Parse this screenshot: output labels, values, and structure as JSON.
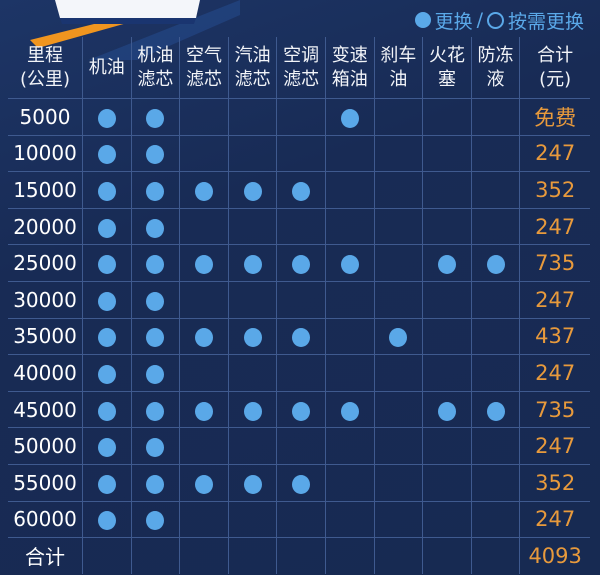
{
  "legend": {
    "replace_label": "更换",
    "separator": "/",
    "on_demand_label": "按需更换",
    "dot_color": "#5aa8e8"
  },
  "colors": {
    "total_text": "#e89a3c",
    "grid": "#3f5a8f"
  },
  "columns": [
    [
      "里程",
      "(公里)"
    ],
    [
      "机油"
    ],
    [
      "机油",
      "滤芯"
    ],
    [
      "空气",
      "滤芯"
    ],
    [
      "汽油",
      "滤芯"
    ],
    [
      "空调",
      "滤芯"
    ],
    [
      "变速",
      "箱油"
    ],
    [
      "刹车",
      "油"
    ],
    [
      "火花",
      "塞"
    ],
    [
      "防冻",
      "液"
    ],
    [
      "合计",
      "(元)"
    ]
  ],
  "rows": [
    {
      "km": "5000",
      "marks": [
        1,
        1,
        0,
        0,
        0,
        1,
        0,
        0,
        0
      ],
      "total": "免费"
    },
    {
      "km": "10000",
      "marks": [
        1,
        1,
        0,
        0,
        0,
        0,
        0,
        0,
        0
      ],
      "total": "247"
    },
    {
      "km": "15000",
      "marks": [
        1,
        1,
        1,
        1,
        1,
        0,
        0,
        0,
        0
      ],
      "total": "352"
    },
    {
      "km": "20000",
      "marks": [
        1,
        1,
        0,
        0,
        0,
        0,
        0,
        0,
        0
      ],
      "total": "247"
    },
    {
      "km": "25000",
      "marks": [
        1,
        1,
        1,
        1,
        1,
        1,
        0,
        1,
        1
      ],
      "total": "735"
    },
    {
      "km": "30000",
      "marks": [
        1,
        1,
        0,
        0,
        0,
        0,
        0,
        0,
        0
      ],
      "total": "247"
    },
    {
      "km": "35000",
      "marks": [
        1,
        1,
        1,
        1,
        1,
        0,
        1,
        0,
        0
      ],
      "total": "437"
    },
    {
      "km": "40000",
      "marks": [
        1,
        1,
        0,
        0,
        0,
        0,
        0,
        0,
        0
      ],
      "total": "247"
    },
    {
      "km": "45000",
      "marks": [
        1,
        1,
        1,
        1,
        1,
        1,
        0,
        1,
        1
      ],
      "total": "735"
    },
    {
      "km": "50000",
      "marks": [
        1,
        1,
        0,
        0,
        0,
        0,
        0,
        0,
        0
      ],
      "total": "247"
    },
    {
      "km": "55000",
      "marks": [
        1,
        1,
        1,
        1,
        1,
        0,
        0,
        0,
        0
      ],
      "total": "352"
    },
    {
      "km": "60000",
      "marks": [
        1,
        1,
        0,
        0,
        0,
        0,
        0,
        0,
        0
      ],
      "total": "247"
    }
  ],
  "summary": {
    "label": "合计",
    "total": "4093"
  }
}
